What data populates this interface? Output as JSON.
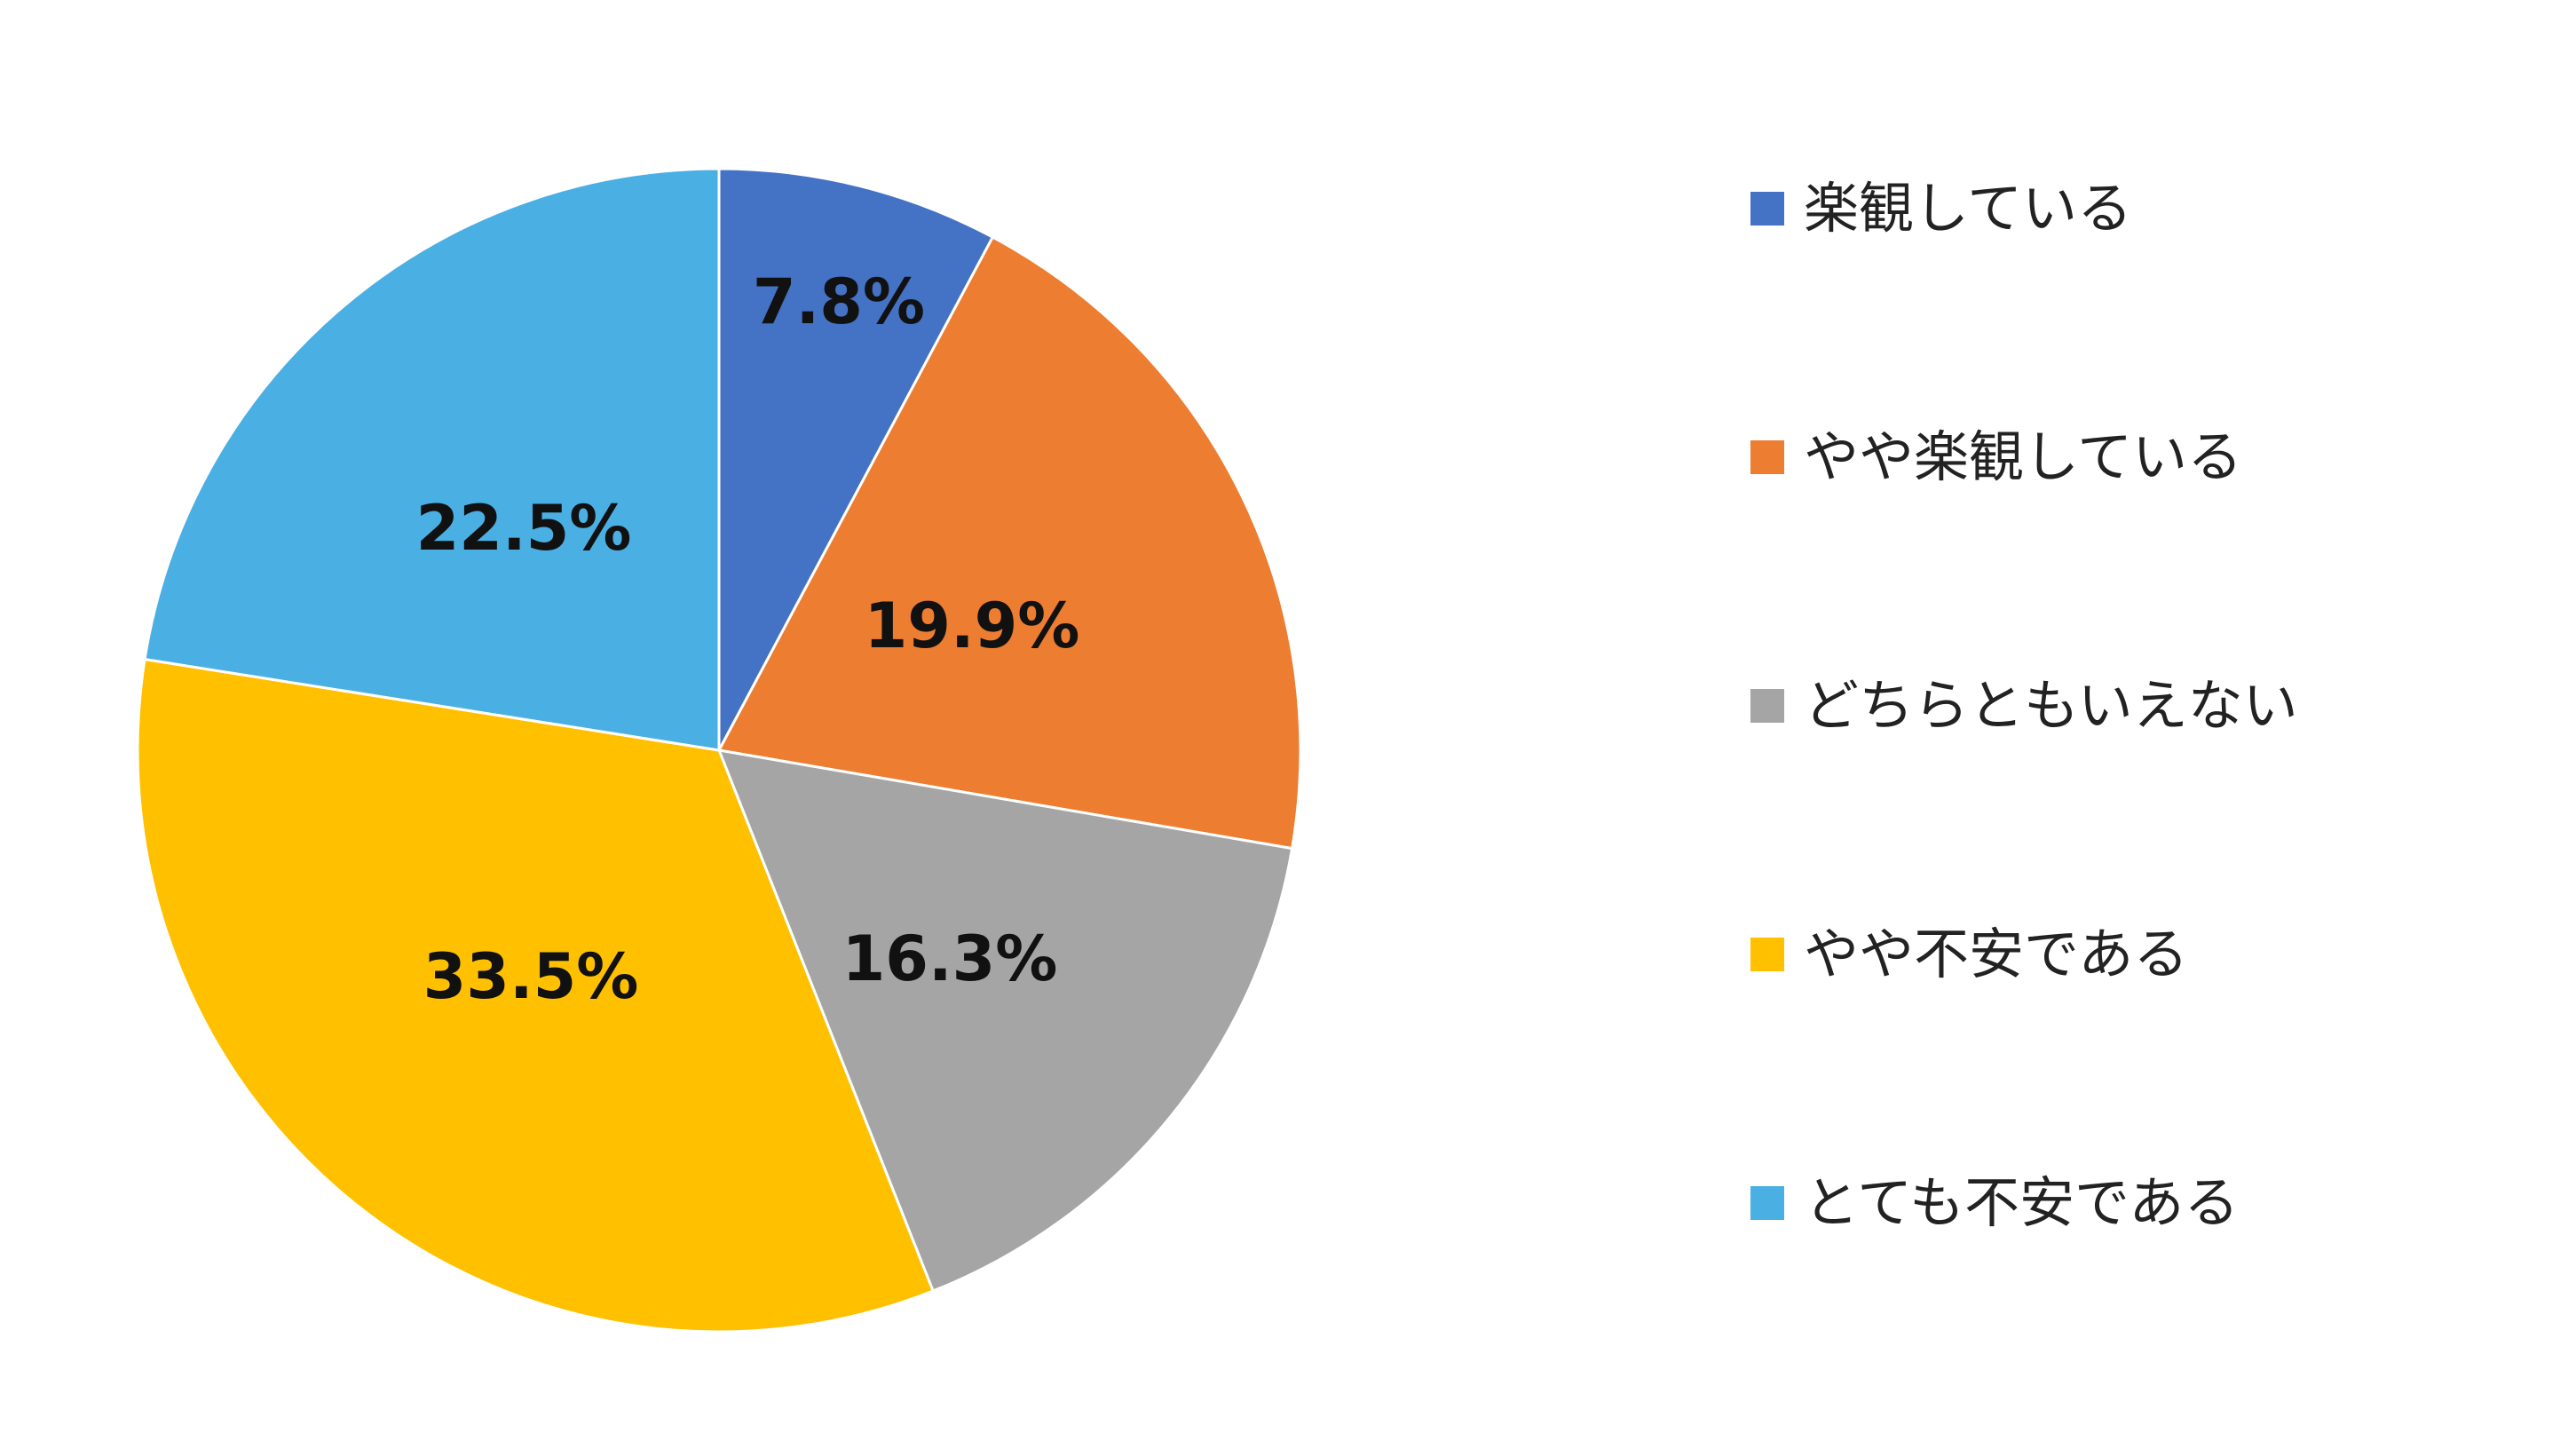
{
  "chart_data": {
    "type": "pie",
    "categories": [
      "楽観している",
      "やや楽観している",
      "どちらともいえない",
      "やや不安である",
      "とても不安である"
    ],
    "values": [
      7.8,
      19.9,
      16.3,
      33.5,
      22.5
    ],
    "value_labels": [
      "7.8%",
      "19.9%",
      "16.3%",
      "33.5%",
      "22.5%"
    ],
    "colors": [
      "#4472C4",
      "#ED7D31",
      "#A5A5A5",
      "#FFC000",
      "#4AAFE3"
    ],
    "start_angle": "12 o'clock",
    "direction": "clockwise",
    "legend_position": "right",
    "title": ""
  }
}
